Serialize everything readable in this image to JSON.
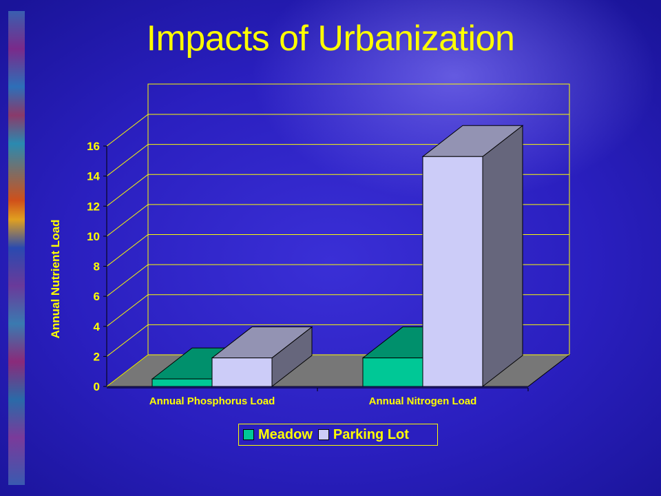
{
  "title": "Impacts of Urbanization",
  "chart_data": {
    "type": "bar",
    "categories": [
      "Annual Phosphorus Load",
      "Annual Nitrogen Load"
    ],
    "series": [
      {
        "name": "Meadow",
        "values": [
          0.5,
          1.9
        ],
        "color": "#00c896"
      },
      {
        "name": "Parking Lot",
        "values": [
          1.9,
          15.3
        ],
        "color": "#ccccf8"
      }
    ],
    "ylabel": "Annual Nutrient Load",
    "xlabel": "",
    "ylim": [
      0,
      16
    ],
    "yticks": [
      "0",
      "2",
      "4",
      "6",
      "8",
      "10",
      "12",
      "14",
      "16"
    ],
    "grid": true,
    "legend_position": "bottom",
    "three_d": true
  },
  "legend": {
    "items": [
      {
        "label": "Meadow",
        "color": "#00c896"
      },
      {
        "label": "Parking Lot",
        "color": "#ccccf8"
      }
    ]
  },
  "colors": {
    "text": "#ffff00",
    "floor": "#777777",
    "background": "#2a1fbf"
  }
}
